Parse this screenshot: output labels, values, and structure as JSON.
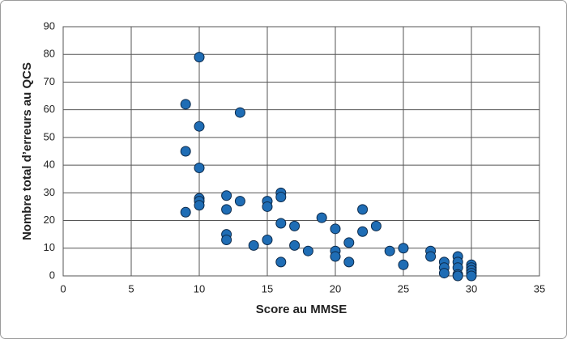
{
  "chart_data": {
    "type": "scatter",
    "x_label": "Score au MMSE",
    "y_label": "Nombre total d’erreurs au QCS",
    "x": [
      9,
      9,
      9,
      10,
      10,
      10,
      10,
      10,
      10,
      12,
      12,
      12,
      12,
      13,
      13,
      14,
      15,
      15,
      15,
      16,
      16,
      16,
      16,
      17,
      17,
      18,
      19,
      20,
      20,
      20,
      21,
      21,
      22,
      22,
      23,
      24,
      25,
      25,
      27,
      27,
      28,
      28,
      28,
      29,
      29,
      29,
      29,
      29,
      30,
      30,
      30,
      30,
      30
    ],
    "values": [
      62,
      45,
      23,
      79,
      54,
      39,
      28,
      27,
      25.5,
      29,
      24,
      15,
      13,
      59,
      27,
      11,
      27,
      25,
      13,
      30,
      28.5,
      19,
      5,
      18,
      11,
      9,
      21,
      17,
      9,
      7,
      12,
      5,
      24,
      16,
      18,
      9,
      10,
      4,
      9,
      7,
      5,
      3,
      1,
      7,
      5,
      3,
      0.5,
      0,
      4,
      3,
      2,
      1,
      0
    ],
    "color": "#1f6db5",
    "xlim": [
      0,
      35
    ],
    "xticks": [
      0,
      5,
      10,
      15,
      20,
      25,
      30,
      35
    ],
    "ylim": [
      0,
      90
    ],
    "yticks": [
      0,
      10,
      20,
      30,
      40,
      50,
      60,
      70,
      80,
      90
    ],
    "grid": true
  }
}
